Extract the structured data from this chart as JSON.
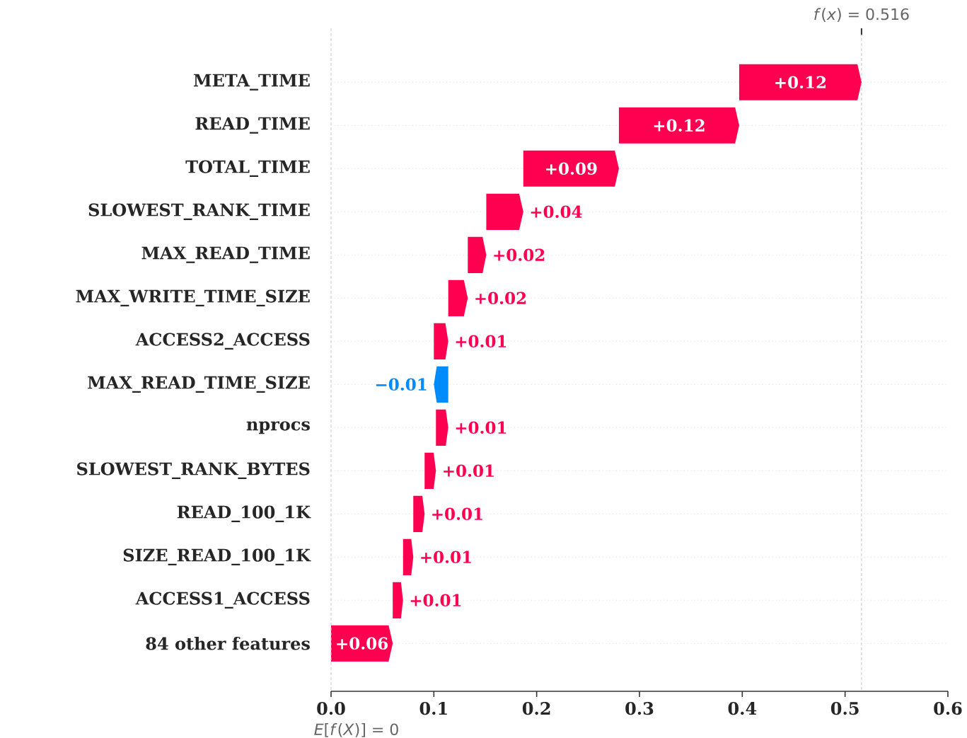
{
  "chart_data": {
    "type": "bar",
    "orientation": "horizontal",
    "categories": [
      "META_TIME",
      "READ_TIME",
      "TOTAL_TIME",
      "SLOWEST_RANK_TIME",
      "MAX_READ_TIME",
      "MAX_WRITE_TIME_SIZE",
      "ACCESS2_ACCESS",
      "MAX_READ_TIME_SIZE",
      "nprocs",
      "SLOWEST_RANK_BYTES",
      "READ_100_1K",
      "SIZE_READ_100_1K",
      "ACCESS1_ACCESS",
      "84 other features"
    ],
    "values": [
      0.119,
      0.117,
      0.093,
      0.036,
      0.018,
      0.019,
      0.014,
      -0.014,
      0.012,
      0.011,
      0.011,
      0.01,
      0.01,
      0.06
    ],
    "base": [
      0.397,
      0.28,
      0.187,
      0.151,
      0.133,
      0.114,
      0.1,
      0.114,
      0.102,
      0.091,
      0.08,
      0.07,
      0.06,
      0
    ],
    "value_labels": [
      "+0.12",
      "+0.12",
      "+0.09",
      "+0.04",
      "+0.02",
      "+0.02",
      "+0.01",
      "−0.01",
      "+0.01",
      "+0.01",
      "+0.01",
      "+0.01",
      "+0.01",
      "+0.06"
    ],
    "colors": [
      "#ff0051",
      "#ff0051",
      "#ff0051",
      "#ff0051",
      "#ff0051",
      "#ff0051",
      "#ff0051",
      "#008bfb",
      "#ff0051",
      "#ff0051",
      "#ff0051",
      "#ff0051",
      "#ff0051",
      "#ff0051"
    ],
    "xlim": [
      0,
      0.6
    ],
    "xticks": [
      {
        "value": 0,
        "label": "0.0"
      },
      0.1,
      0.2,
      0.3,
      0.4,
      0.5,
      0.6
    ],
    "grid": "y",
    "ref_lines": [
      {
        "axis": "x",
        "value": 0.516,
        "label": "*f*(*x*) = 0.516"
      },
      {
        "axis": "x",
        "value": 0,
        "label": "*E*[*f*(*X*)] = 0"
      }
    ]
  }
}
